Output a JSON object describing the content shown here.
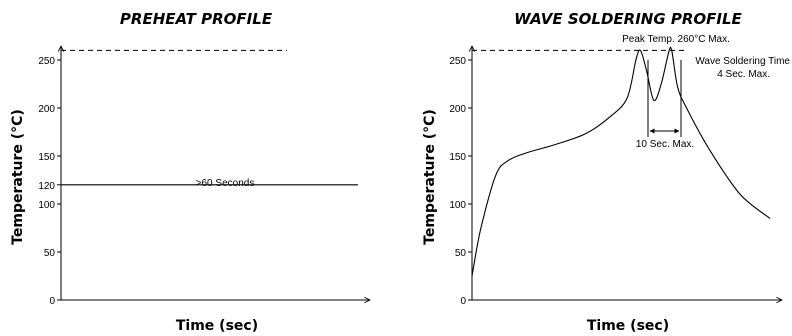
{
  "chart_data": [
    {
      "type": "line",
      "title": "PREHEAT PROFILE",
      "xlabel": "Time (sec)",
      "ylabel": "Temperature (°C)",
      "ylim": [
        0,
        265
      ],
      "y_ticks": [
        "0",
        "50",
        "100",
        "120",
        "150",
        "200",
        "250"
      ],
      "y_tick_values": [
        0,
        50,
        100,
        120,
        150,
        200,
        250
      ],
      "series": [
        {
          "x": [
            0,
            1
          ],
          "y": [
            120,
            120
          ]
        }
      ],
      "reference_lines": [
        {
          "y": 260,
          "style": "dashed"
        }
      ],
      "annotations": [
        {
          "text": ">60 Seconds"
        }
      ]
    },
    {
      "type": "line",
      "title": "WAVE SOLDERING PROFILE",
      "xlabel": "Time (sec)",
      "ylabel": "Temperature (°C)",
      "ylim": [
        0,
        265
      ],
      "y_ticks": [
        "0",
        "50",
        "100",
        "150",
        "200",
        "250"
      ],
      "y_tick_values": [
        0,
        50,
        100,
        150,
        200,
        250
      ],
      "series": [
        {
          "x": [
            0,
            0.03,
            0.08,
            0.12,
            0.18,
            0.28,
            0.38,
            0.46,
            0.52,
            0.55,
            0.565,
            0.585,
            0.61,
            0.635,
            0.66,
            0.67,
            0.69,
            0.72,
            0.8,
            0.9,
            1.0
          ],
          "y": [
            25,
            75,
            130,
            145,
            153,
            162,
            173,
            190,
            210,
            250,
            260,
            240,
            208,
            225,
            258,
            260,
            222,
            200,
            155,
            110,
            85
          ]
        }
      ],
      "reference_lines": [
        {
          "y": 260,
          "style": "dashed"
        }
      ],
      "annotations": [
        {
          "text": "Peak Temp. 260°C Max."
        },
        {
          "text": "Wave Soldering Time"
        },
        {
          "text": "4 Sec. Max."
        },
        {
          "text": "10 Sec. Max."
        }
      ]
    }
  ]
}
